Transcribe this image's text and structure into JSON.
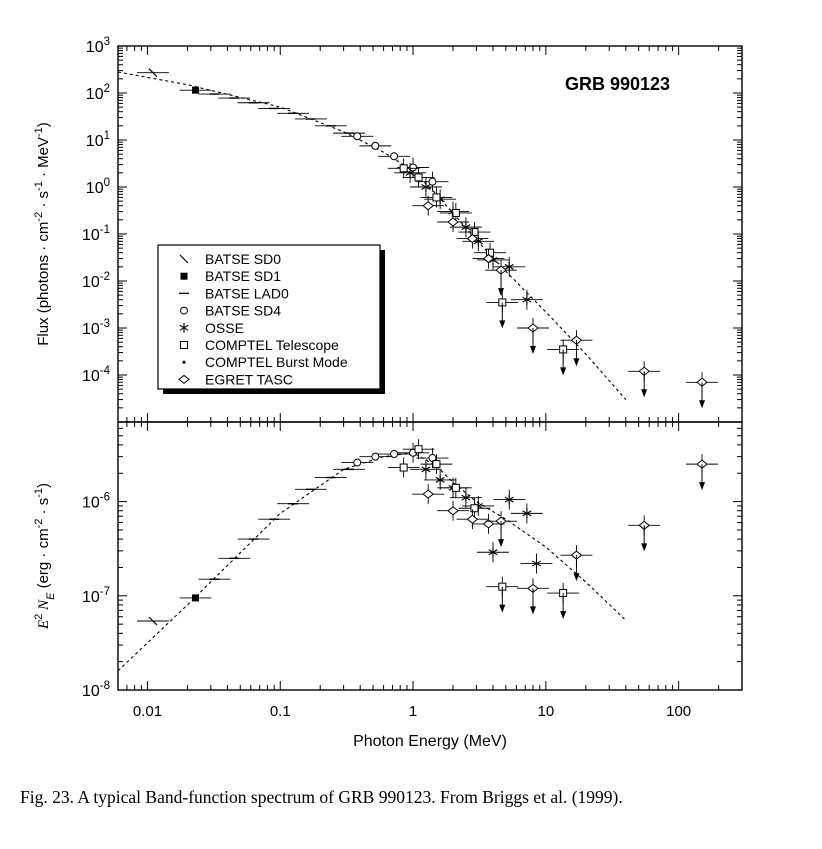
{
  "chart_data": [
    {
      "type": "scatter",
      "panel": "top",
      "title": "GRB 990123",
      "ylabel": "Flux  (photons · cm^-2 · s^-1 · MeV^-1)",
      "xlabel": "Photon Energy (MeV)",
      "xscale": "log",
      "yscale": "log",
      "xlim": [
        0.006,
        300
      ],
      "ylim": [
        1e-05,
        1000
      ],
      "yticks": [
        "10^3",
        "10^2",
        "10^1",
        "10^0",
        "10^-1",
        "10^-2",
        "10^-3",
        "10^-4"
      ],
      "legend_position": "lower-left",
      "legend": [
        {
          "label": "BATSE SD0",
          "marker": "slash"
        },
        {
          "label": "BATSE SD1",
          "marker": "filled-square"
        },
        {
          "label": "BATSE LAD0",
          "marker": "dash"
        },
        {
          "label": "BATSE SD4",
          "marker": "circle"
        },
        {
          "label": "OSSE",
          "marker": "asterisk"
        },
        {
          "label": "COMPTEL Telescope",
          "marker": "square"
        },
        {
          "label": "COMPTEL Burst Mode",
          "marker": "dot"
        },
        {
          "label": "EGRET TASC",
          "marker": "diamond"
        }
      ],
      "model_curve": {
        "style": "dashed",
        "x": [
          0.006,
          0.02,
          0.1,
          0.3,
          0.6,
          1,
          1.5,
          2,
          3,
          5,
          10,
          20,
          40
        ],
        "y": [
          280,
          150,
          50,
          15,
          5.5,
          2.2,
          0.7,
          0.28,
          0.075,
          0.016,
          0.0022,
          0.00028,
          3e-05
        ]
      },
      "series": [
        {
          "name": "BATSE SD0",
          "marker": "slash",
          "x": [
            0.011
          ],
          "y": [
            270
          ],
          "xerr": [
            [
              0.0085,
              0.014
            ]
          ]
        },
        {
          "name": "BATSE SD1",
          "marker": "filled-square",
          "x": [
            0.023
          ],
          "y": [
            115
          ],
          "xerr": [
            [
              0.018,
              0.029
            ]
          ]
        },
        {
          "name": "BATSE LAD0",
          "marker": "dash",
          "x": [
            0.032,
            0.045,
            0.063,
            0.09,
            0.125,
            0.17,
            0.24,
            0.33
          ],
          "y": [
            95,
            78,
            62,
            47,
            37,
            28,
            20,
            14
          ]
        },
        {
          "name": "BATSE SD4",
          "marker": "circle",
          "x": [
            0.38,
            0.52,
            0.72,
            1.0,
            1.4
          ],
          "y": [
            12,
            7.5,
            4.5,
            2.6,
            1.3
          ]
        },
        {
          "name": "OSSE",
          "marker": "asterisk",
          "x": [
            0.95,
            1.25,
            1.6,
            2.0,
            2.5,
            3.1,
            4.0,
            5.3,
            7.2
          ],
          "y": [
            2.0,
            1.0,
            0.55,
            0.3,
            0.14,
            0.07,
            0.028,
            0.02,
            0.004
          ]
        },
        {
          "name": "COMPTEL Telescope",
          "marker": "square",
          "x": [
            0.85,
            1.1,
            1.5,
            2.1,
            2.9,
            3.8,
            4.7,
            13.5
          ],
          "y": [
            2.5,
            1.6,
            0.6,
            0.28,
            0.11,
            0.04,
            0.0035,
            0.00035
          ]
        },
        {
          "name": "EGRET TASC",
          "marker": "diamond",
          "x": [
            1.3,
            2.0,
            2.8,
            3.7,
            4.6,
            8.0,
            17,
            55,
            150
          ],
          "y": [
            0.4,
            0.18,
            0.08,
            0.03,
            0.017,
            0.001,
            0.00055,
            0.00012,
            7e-05
          ]
        }
      ]
    },
    {
      "type": "scatter",
      "panel": "bottom",
      "ylabel": "E^2 N_E (erg · cm^-2 · s^-1)",
      "xlabel": "Photon Energy (MeV)",
      "xscale": "log",
      "yscale": "log",
      "xlim": [
        0.006,
        300
      ],
      "ylim": [
        1e-08,
        7e-06
      ],
      "yticks": [
        "10^-6",
        "10^-7",
        "10^-8"
      ],
      "xticks": [
        "0.01",
        "0.1",
        "1",
        "10",
        "100"
      ],
      "model_curve": {
        "style": "dashed",
        "x": [
          0.006,
          0.02,
          0.1,
          0.3,
          0.6,
          1,
          1.5,
          2,
          3,
          5,
          10,
          20,
          40
        ],
        "y": [
          1.6e-08,
          8e-08,
          7.5e-07,
          2.2e-06,
          3e-06,
          3.3e-06,
          2.4e-06,
          1.6e-06,
          1e-06,
          6.5e-07,
          3.3e-07,
          1.4e-07,
          5.5e-08
        ]
      },
      "series": [
        {
          "name": "BATSE SD0",
          "marker": "slash",
          "x": [
            0.011
          ],
          "y": [
            5.4e-08
          ]
        },
        {
          "name": "BATSE SD1",
          "marker": "filled-square",
          "x": [
            0.023
          ],
          "y": [
            9.5e-08
          ]
        },
        {
          "name": "BATSE LAD0",
          "marker": "dash",
          "x": [
            0.032,
            0.045,
            0.063,
            0.09,
            0.125,
            0.17,
            0.24,
            0.33
          ],
          "y": [
            1.5e-07,
            2.5e-07,
            4e-07,
            6.5e-07,
            9.5e-07,
            1.35e-06,
            1.8e-06,
            2.2e-06
          ]
        },
        {
          "name": "BATSE SD4",
          "marker": "circle",
          "x": [
            0.38,
            0.52,
            0.72,
            1.0,
            1.4
          ],
          "y": [
            2.6e-06,
            3e-06,
            3.2e-06,
            3.3e-06,
            2.9e-06
          ]
        },
        {
          "name": "OSSE",
          "marker": "asterisk",
          "x": [
            1.25,
            1.6,
            2.0,
            2.5,
            3.1,
            4.0,
            5.3,
            7.2,
            8.5
          ],
          "y": [
            2.2e-06,
            1.7e-06,
            1.4e-06,
            1.1e-06,
            9e-07,
            2.9e-07,
            1.05e-06,
            7.5e-07,
            2.2e-07
          ]
        },
        {
          "name": "COMPTEL Telescope",
          "marker": "square",
          "x": [
            0.85,
            1.1,
            1.5,
            2.1,
            2.9,
            4.7,
            13.5
          ],
          "y": [
            2.3e-06,
            3.6e-06,
            2.5e-06,
            1.4e-06,
            8.5e-07,
            1.25e-07,
            1.07e-07
          ]
        },
        {
          "name": "EGRET TASC",
          "marker": "diamond",
          "x": [
            1.3,
            2.0,
            2.8,
            3.7,
            4.6,
            8.0,
            17,
            55,
            150
          ],
          "y": [
            1.2e-06,
            8e-07,
            6.5e-07,
            5.8e-07,
            6.2e-07,
            1.2e-07,
            2.7e-07,
            5.6e-07,
            2.5e-06
          ]
        }
      ]
    }
  ],
  "caption": {
    "text": "Fig. 23. A typical Band-function spectrum of GRB 990123. From Briggs et al. (1999)."
  }
}
